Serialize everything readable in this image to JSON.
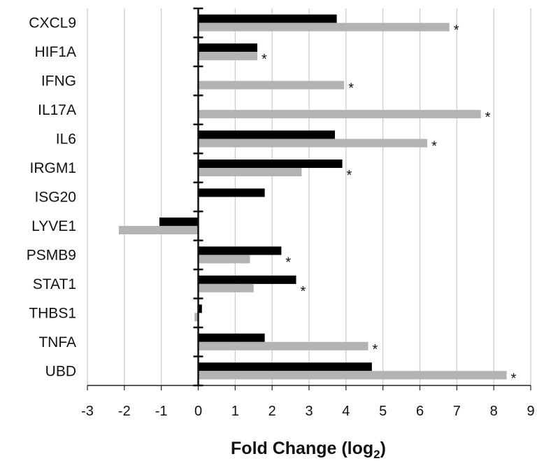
{
  "chart_data": {
    "type": "bar",
    "orientation": "horizontal",
    "categories": [
      "CXCL9",
      "HIF1A",
      "IFNG",
      "IL17A",
      "IL6",
      "IRGM1",
      "ISG20",
      "LYVE1",
      "PSMB9",
      "STAT1",
      "THBS1",
      "TNFA",
      "UBD"
    ],
    "series": [
      {
        "color": "#000000",
        "values": [
          3.75,
          1.6,
          null,
          null,
          3.7,
          3.9,
          1.8,
          -1.05,
          2.25,
          2.65,
          0.1,
          1.8,
          4.7
        ]
      },
      {
        "color": "#b3b3b3",
        "values": [
          6.8,
          1.6,
          3.95,
          7.65,
          6.2,
          2.8,
          null,
          -2.15,
          1.4,
          1.5,
          -0.1,
          4.6,
          8.35
        ]
      }
    ],
    "significant": [
      true,
      true,
      true,
      true,
      true,
      true,
      false,
      false,
      true,
      true,
      false,
      true,
      true
    ],
    "significance_marker": "*",
    "xlabel": "Fold Change (log",
    "xlabel_subscript": "2",
    "xlabel_suffix": ")",
    "xlim": [
      -3,
      9
    ],
    "xticks": [
      "-3",
      "-2",
      "-1",
      "0",
      "1",
      "2",
      "3",
      "4",
      "5",
      "6",
      "7",
      "8",
      "9"
    ],
    "grid": "vertical"
  }
}
